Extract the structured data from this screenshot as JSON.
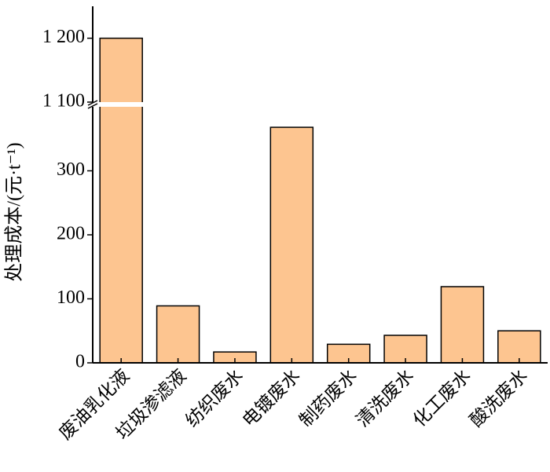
{
  "chart_data": {
    "type": "bar",
    "y_label": "处理成本/(元·t⁻¹)",
    "categories": [
      "废油乳化液",
      "垃圾渗滤液",
      "纺织废水",
      "电镀废水",
      "制药废水",
      "清洗废水",
      "化工废水",
      "酸洗废水"
    ],
    "values": [
      1200,
      89,
      17,
      368,
      29,
      43,
      119,
      50
    ],
    "color": "#fdc590",
    "ylim": [
      0,
      1250
    ],
    "axis_break": [
      400,
      1100
    ],
    "yticks": [
      0,
      100,
      200,
      300,
      {
        "value": 1100,
        "label": "1 100"
      },
      {
        "value": 1200,
        "label": "1 200"
      }
    ]
  }
}
